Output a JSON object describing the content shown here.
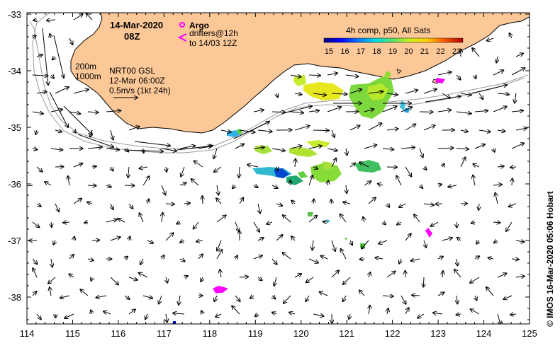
{
  "map": {
    "date": "14-Mar-2020",
    "time": "08Z",
    "legend_argo": "Argo",
    "legend_drifters": "drifters@12h",
    "legend_drifters_to": "to 14/03 12Z",
    "contour_200": "200m",
    "contour_1000": "1000m",
    "product": "NRT00 GSL",
    "product_date": "12-Mar 06:00Z",
    "scale_label": "0.5m/s (1kt 24h)",
    "colorbar_title": "4h comp, p50, All Sats",
    "colorbar_ticks": [
      "15",
      "16",
      "17",
      "18",
      "19",
      "20",
      "21",
      "22",
      "23"
    ],
    "credit": "© IMOS 16-Mar-2020 05:06 Hobart",
    "x_ticks": [
      "114",
      "115",
      "116",
      "117",
      "118",
      "119",
      "120",
      "121",
      "122",
      "123",
      "124",
      "125"
    ],
    "y_ticks": [
      "-33",
      "-34",
      "-35",
      "-36",
      "-37",
      "-38"
    ],
    "colors": {
      "land": "#fcc898",
      "argo": "#ff00ff",
      "drifter": "#ff00ff"
    }
  }
}
